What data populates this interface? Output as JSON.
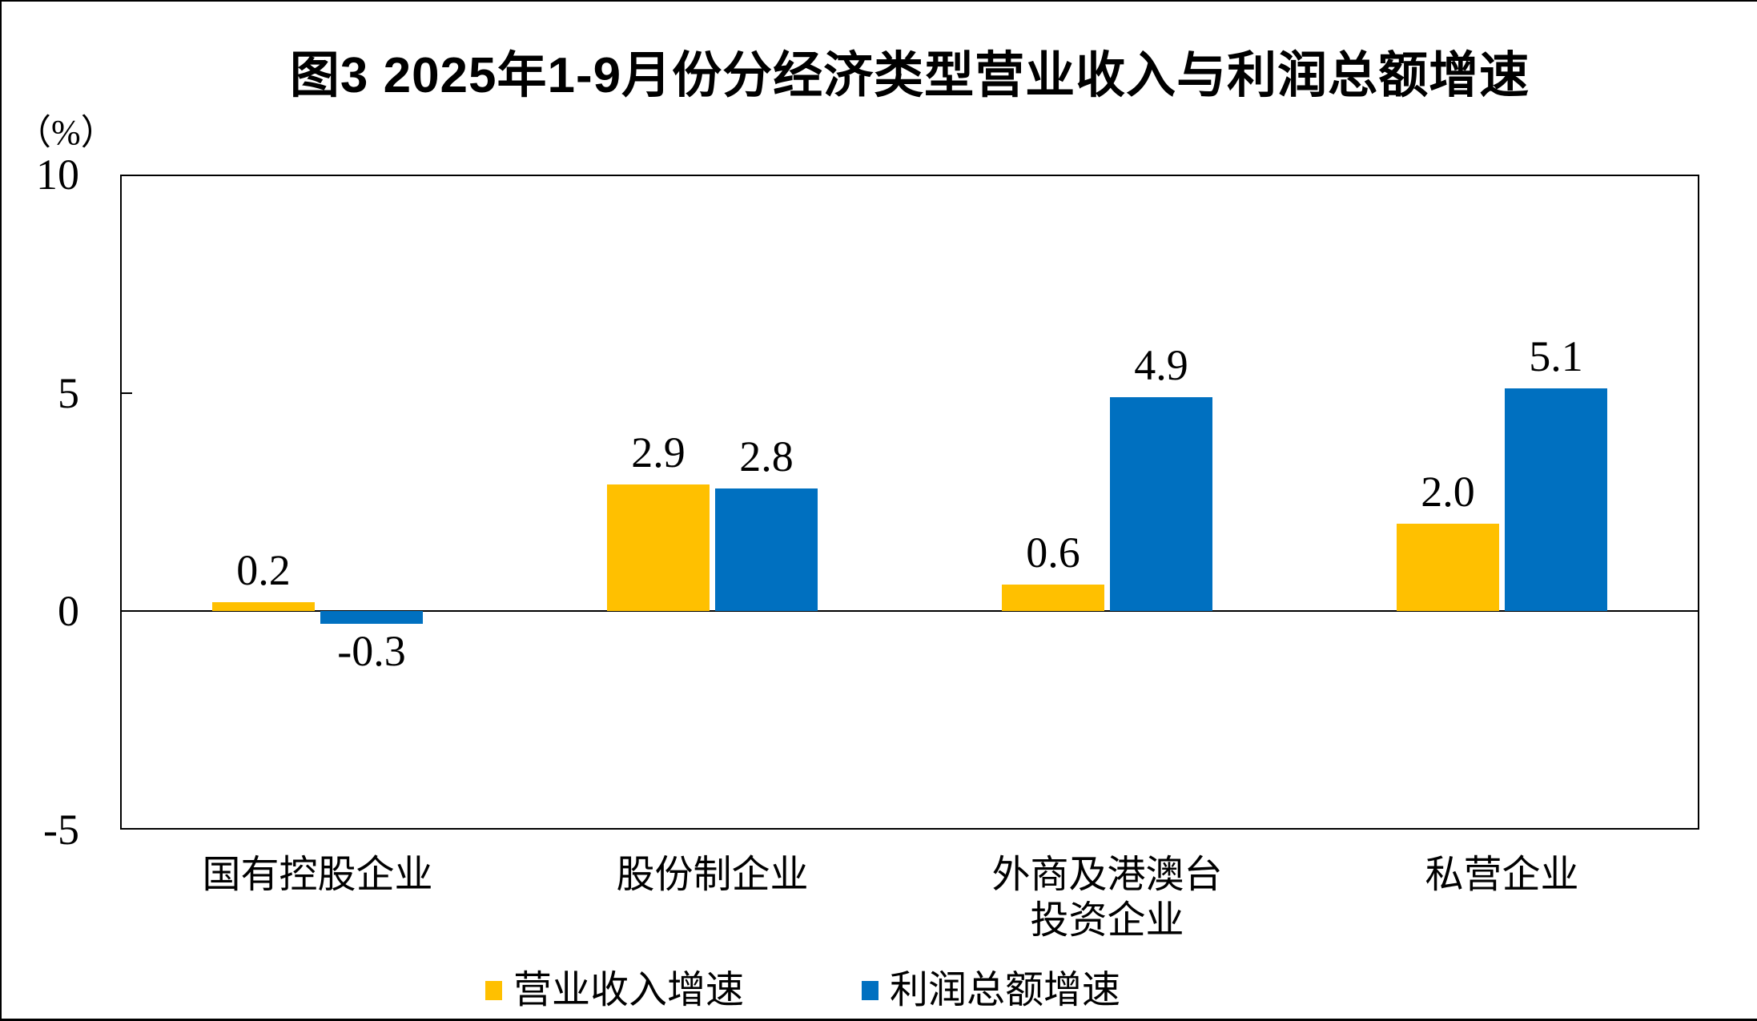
{
  "chart_data": {
    "type": "bar",
    "title": "图3 2025年1-9月份分经济类型营业收入与利润总额增速",
    "unit_label": "（%）",
    "categories": [
      "国有控股企业",
      "股份制企业",
      "外商及港澳台\n投资企业",
      "私营企业"
    ],
    "series": [
      {
        "name": "营业收入增速",
        "color": "#FFC000",
        "values": [
          0.2,
          2.9,
          0.6,
          2.0
        ],
        "labels": [
          "0.2",
          "2.9",
          "0.6",
          "2.0"
        ]
      },
      {
        "name": "利润总额增速",
        "color": "#0070C0",
        "values": [
          -0.3,
          2.8,
          4.9,
          5.1
        ],
        "labels": [
          "-0.3",
          "2.8",
          "4.9",
          "5.1"
        ]
      }
    ],
    "y_axis": {
      "min": -5,
      "max": 10,
      "ticks": [
        10,
        5,
        0,
        -5
      ],
      "tick_labels": [
        "10",
        "5",
        "0",
        "-5"
      ]
    },
    "legend_position": "bottom",
    "grid": false,
    "colors": {
      "axis": "#000000",
      "text": "#000000",
      "background": "#FFFFFF"
    }
  }
}
